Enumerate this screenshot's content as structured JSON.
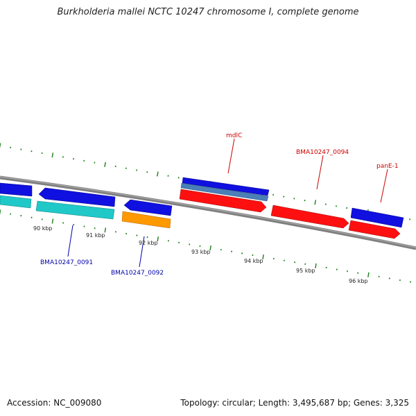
{
  "header": {
    "title": "Burkholderia mallei NCTC 10247 chromosome I, complete genome"
  },
  "footer": {
    "accession": "Accession: NC_009080",
    "summary": "Topology: circular; Length: 3,495,687 bp; Genes: 3,325"
  },
  "colors": {
    "backbone": "#808080",
    "tick": "#1a7f1a",
    "forward_label": "#cc0000",
    "reverse_label": "#0000aa",
    "blue_cds": "#1010e0",
    "cyan_cds": "#20c8c8",
    "orange_cds": "#ff9900",
    "red_cds": "#ff1010",
    "steel_cds": "#4a7fb8"
  },
  "scale_labels": [
    "90 kbp",
    "91 kbp",
    "92 kbp",
    "93 kbp",
    "94 kbp",
    "95 kbp",
    "96 kbp"
  ],
  "genes": {
    "mdlC": {
      "label": "mdlC",
      "strand": "forward"
    },
    "BMA10247_0094": {
      "label": "BMA10247_0094",
      "strand": "forward"
    },
    "panE_1": {
      "label": "panE-1",
      "strand": "forward"
    },
    "BMA10247_0091": {
      "label": "BMA10247_0091",
      "strand": "reverse"
    },
    "BMA10247_0092": {
      "label": "BMA10247_0092",
      "strand": "reverse"
    }
  }
}
